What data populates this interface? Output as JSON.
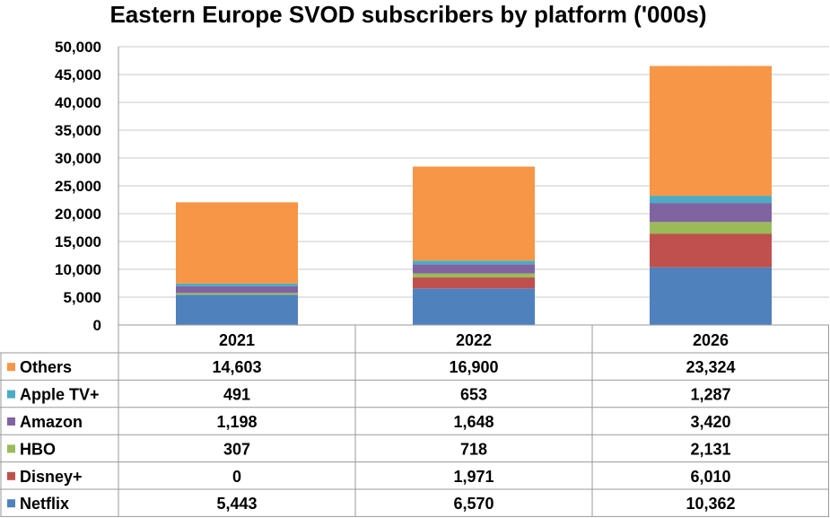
{
  "chart_data": {
    "type": "bar",
    "stacked": true,
    "title": "Eastern Europe SVOD subscribers by platform ('000s)",
    "categories": [
      "2021",
      "2022",
      "2026"
    ],
    "ylim": [
      0,
      50000
    ],
    "yticks": [
      "0",
      "5,000",
      "10,000",
      "15,000",
      "20,000",
      "25,000",
      "30,000",
      "35,000",
      "40,000",
      "45,000",
      "50,000"
    ],
    "grid": true,
    "legend": "data-table-left",
    "series": [
      {
        "name": "Netflix",
        "color": "#4f81bd",
        "values": [
          5443,
          6570,
          10362
        ],
        "labels": [
          "5,443",
          "6,570",
          "10,362"
        ]
      },
      {
        "name": "Disney+",
        "color": "#c0504d",
        "values": [
          0,
          1971,
          6010
        ],
        "labels": [
          "0",
          "1,971",
          "6,010"
        ]
      },
      {
        "name": "HBO",
        "color": "#9bbb59",
        "values": [
          307,
          718,
          2131
        ],
        "labels": [
          "307",
          "718",
          "2,131"
        ]
      },
      {
        "name": "Amazon",
        "color": "#8064a2",
        "values": [
          1198,
          1648,
          3420
        ],
        "labels": [
          "1,198",
          "1,648",
          "3,420"
        ]
      },
      {
        "name": "Apple TV+",
        "color": "#4bacc6",
        "values": [
          491,
          653,
          1287
        ],
        "labels": [
          "491",
          "653",
          "1,287"
        ]
      },
      {
        "name": "Others",
        "color": "#f79646",
        "values": [
          14603,
          16900,
          23324
        ],
        "labels": [
          "14,603",
          "16,900",
          "23,324"
        ]
      }
    ]
  }
}
